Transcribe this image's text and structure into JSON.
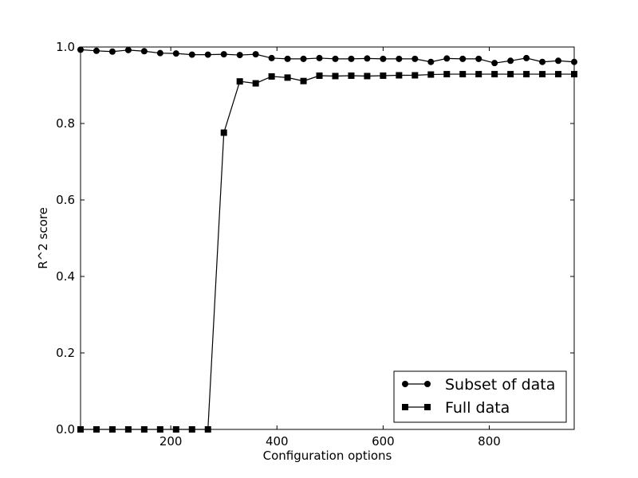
{
  "chart_data": {
    "type": "line",
    "title": "",
    "xlabel": "Configuration options",
    "ylabel": "R^2 score",
    "xlim": [
      30,
      960
    ],
    "ylim": [
      0.0,
      1.0
    ],
    "xticks": [
      200,
      400,
      600,
      800
    ],
    "xtick_labels": [
      "200",
      "400",
      "600",
      "800"
    ],
    "yticks": [
      0.0,
      0.2,
      0.4,
      0.6,
      0.8,
      1.0
    ],
    "ytick_labels": [
      "0.0",
      "0.2",
      "0.4",
      "0.6",
      "0.8",
      "1.0"
    ],
    "grid": false,
    "legend_position": "lower-right",
    "x": [
      30,
      60,
      90,
      120,
      150,
      180,
      210,
      240,
      270,
      300,
      330,
      360,
      390,
      420,
      450,
      480,
      510,
      540,
      570,
      600,
      630,
      660,
      690,
      720,
      750,
      780,
      810,
      840,
      870,
      900,
      930,
      960
    ],
    "series": [
      {
        "name": "Subset of data",
        "marker": "circle",
        "color": "#000000",
        "values": [
          0.993,
          0.99,
          0.988,
          0.992,
          0.989,
          0.984,
          0.983,
          0.98,
          0.98,
          0.981,
          0.979,
          0.981,
          0.971,
          0.969,
          0.969,
          0.971,
          0.969,
          0.969,
          0.97,
          0.969,
          0.969,
          0.969,
          0.961,
          0.97,
          0.969,
          0.969,
          0.958,
          0.964,
          0.971,
          0.961,
          0.964,
          0.961
        ]
      },
      {
        "name": "Full data",
        "marker": "square",
        "color": "#000000",
        "values": [
          0.0,
          0.0,
          0.0,
          0.0,
          0.0,
          0.0,
          0.0,
          0.0,
          0.0,
          0.776,
          0.91,
          0.905,
          0.923,
          0.92,
          0.911,
          0.925,
          0.924,
          0.925,
          0.924,
          0.925,
          0.926,
          0.926,
          0.928,
          0.929,
          0.929,
          0.929,
          0.929,
          0.929,
          0.929,
          0.929,
          0.929,
          0.929
        ]
      }
    ]
  }
}
